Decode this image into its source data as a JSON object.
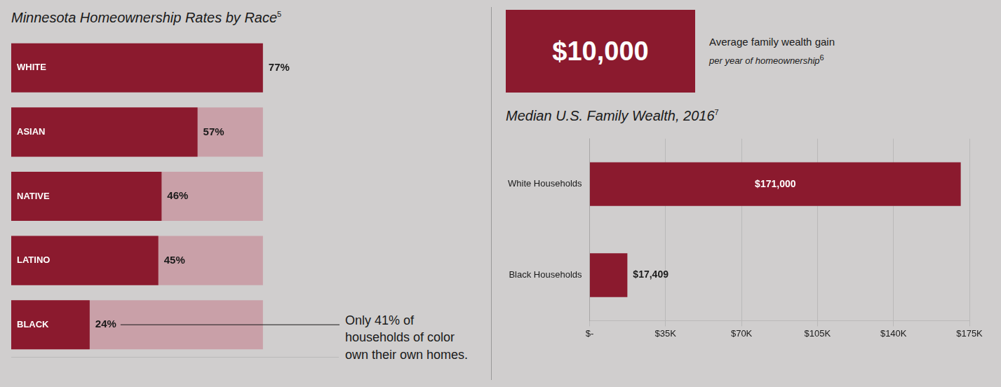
{
  "chart_data": [
    {
      "type": "bar",
      "orientation": "horizontal",
      "title": "Minnesota Homeownership Rates by Race",
      "title_footnote": "5",
      "categories": [
        "WHITE",
        "ASIAN",
        "NATIVE",
        "LATINO",
        "BLACK"
      ],
      "series": [
        {
          "color": "#8b1a2e",
          "values": [
            77,
            57,
            46,
            45,
            24
          ],
          "value_labels": [
            "77%",
            "57%",
            "46%",
            "45%",
            "24%"
          ]
        },
        {
          "color": "#c9a0a8",
          "values": [
            null,
            77,
            77,
            77,
            77
          ]
        }
      ],
      "xlim": [
        0,
        100
      ],
      "data_labels": true,
      "tick_labels": false,
      "grid": false,
      "annotation": "Only 41% of households of color own their own homes."
    },
    {
      "type": "bar",
      "orientation": "horizontal",
      "title": "Median U.S. Family Wealth, 2016",
      "title_footnote": "7",
      "categories": [
        "White Households",
        "Black Households"
      ],
      "values": [
        171000,
        17409
      ],
      "value_labels": [
        "$171,000",
        "$17,409"
      ],
      "color": "#8b1a2e",
      "xlim": [
        0,
        175000
      ],
      "xticks": [
        {
          "value": 0,
          "label": "$-"
        },
        {
          "value": 35000,
          "label": "$35K"
        },
        {
          "value": 70000,
          "label": "$70K"
        },
        {
          "value": 105000,
          "label": "$105K"
        },
        {
          "value": 140000,
          "label": "$140K"
        },
        {
          "value": 175000,
          "label": "$175K"
        }
      ],
      "grid": true,
      "data_labels": true,
      "callout": {
        "value": "$10,000",
        "text": "Average family wealth gain",
        "subtext": "per year of homeownership",
        "footnote": "6"
      }
    }
  ]
}
